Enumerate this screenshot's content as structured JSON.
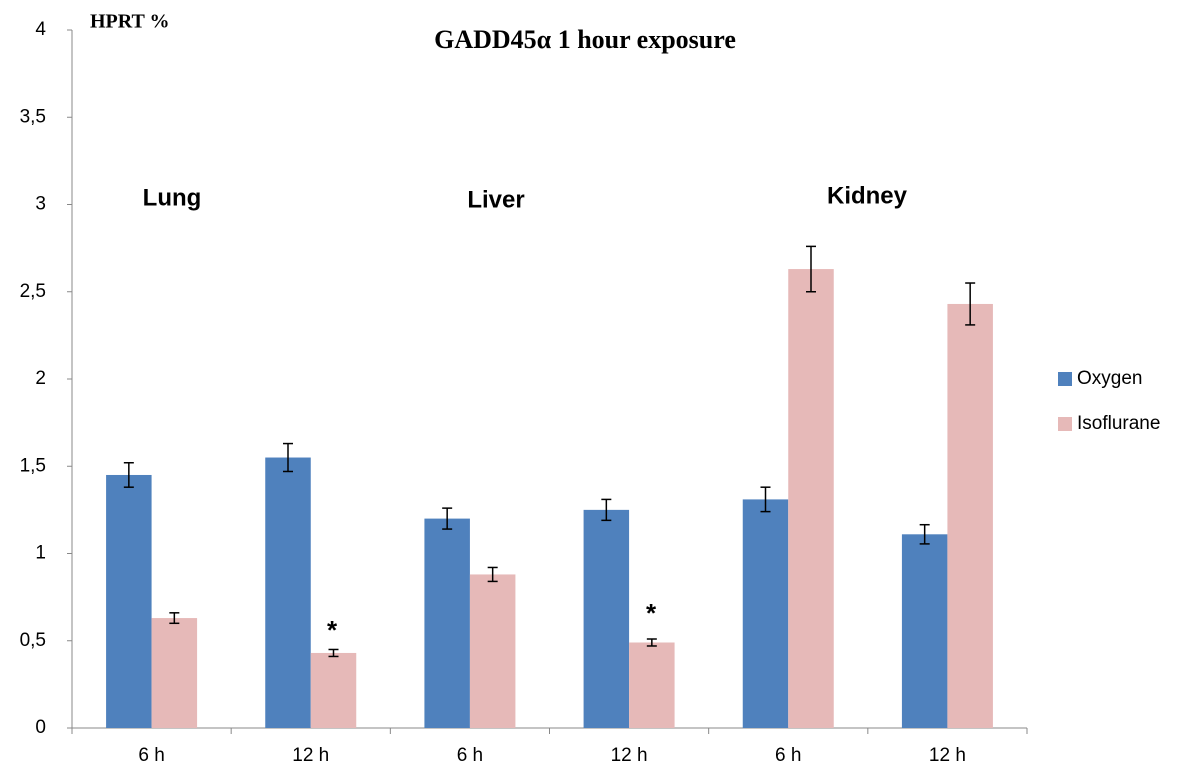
{
  "chart_data": {
    "type": "bar",
    "title": "GADD45α 1 hour exposure",
    "y_label": "HPRT %",
    "categories": [
      "6 h",
      "12 h",
      "6 h",
      "12 h",
      "6 h",
      "12 h"
    ],
    "series": [
      {
        "name": "Oxygen",
        "color": "#4f81bd",
        "values": [
          1.45,
          1.55,
          1.2,
          1.25,
          1.31,
          1.11
        ],
        "errors": [
          0.07,
          0.08,
          0.06,
          0.06,
          0.07,
          0.055
        ]
      },
      {
        "name": "Isoflurane",
        "color": "#e6b9b8",
        "values": [
          0.63,
          0.43,
          0.88,
          0.49,
          2.63,
          2.43
        ],
        "errors": [
          0.03,
          0.02,
          0.04,
          0.02,
          0.13,
          0.12
        ]
      }
    ],
    "annotations": [
      "Lung",
      "Liver",
      "Kidney",
      "*",
      "*"
    ],
    "ylim": [
      0,
      4
    ],
    "yticks": [
      0,
      {
        "value": 0.5,
        "label": "0,5"
      },
      1,
      {
        "value": 1.5,
        "label": "1,5"
      },
      2,
      {
        "value": 2.5,
        "label": "2,5"
      },
      3,
      {
        "value": 3.5,
        "label": "3,5"
      },
      4
    ],
    "legend": "right",
    "grid": false
  }
}
